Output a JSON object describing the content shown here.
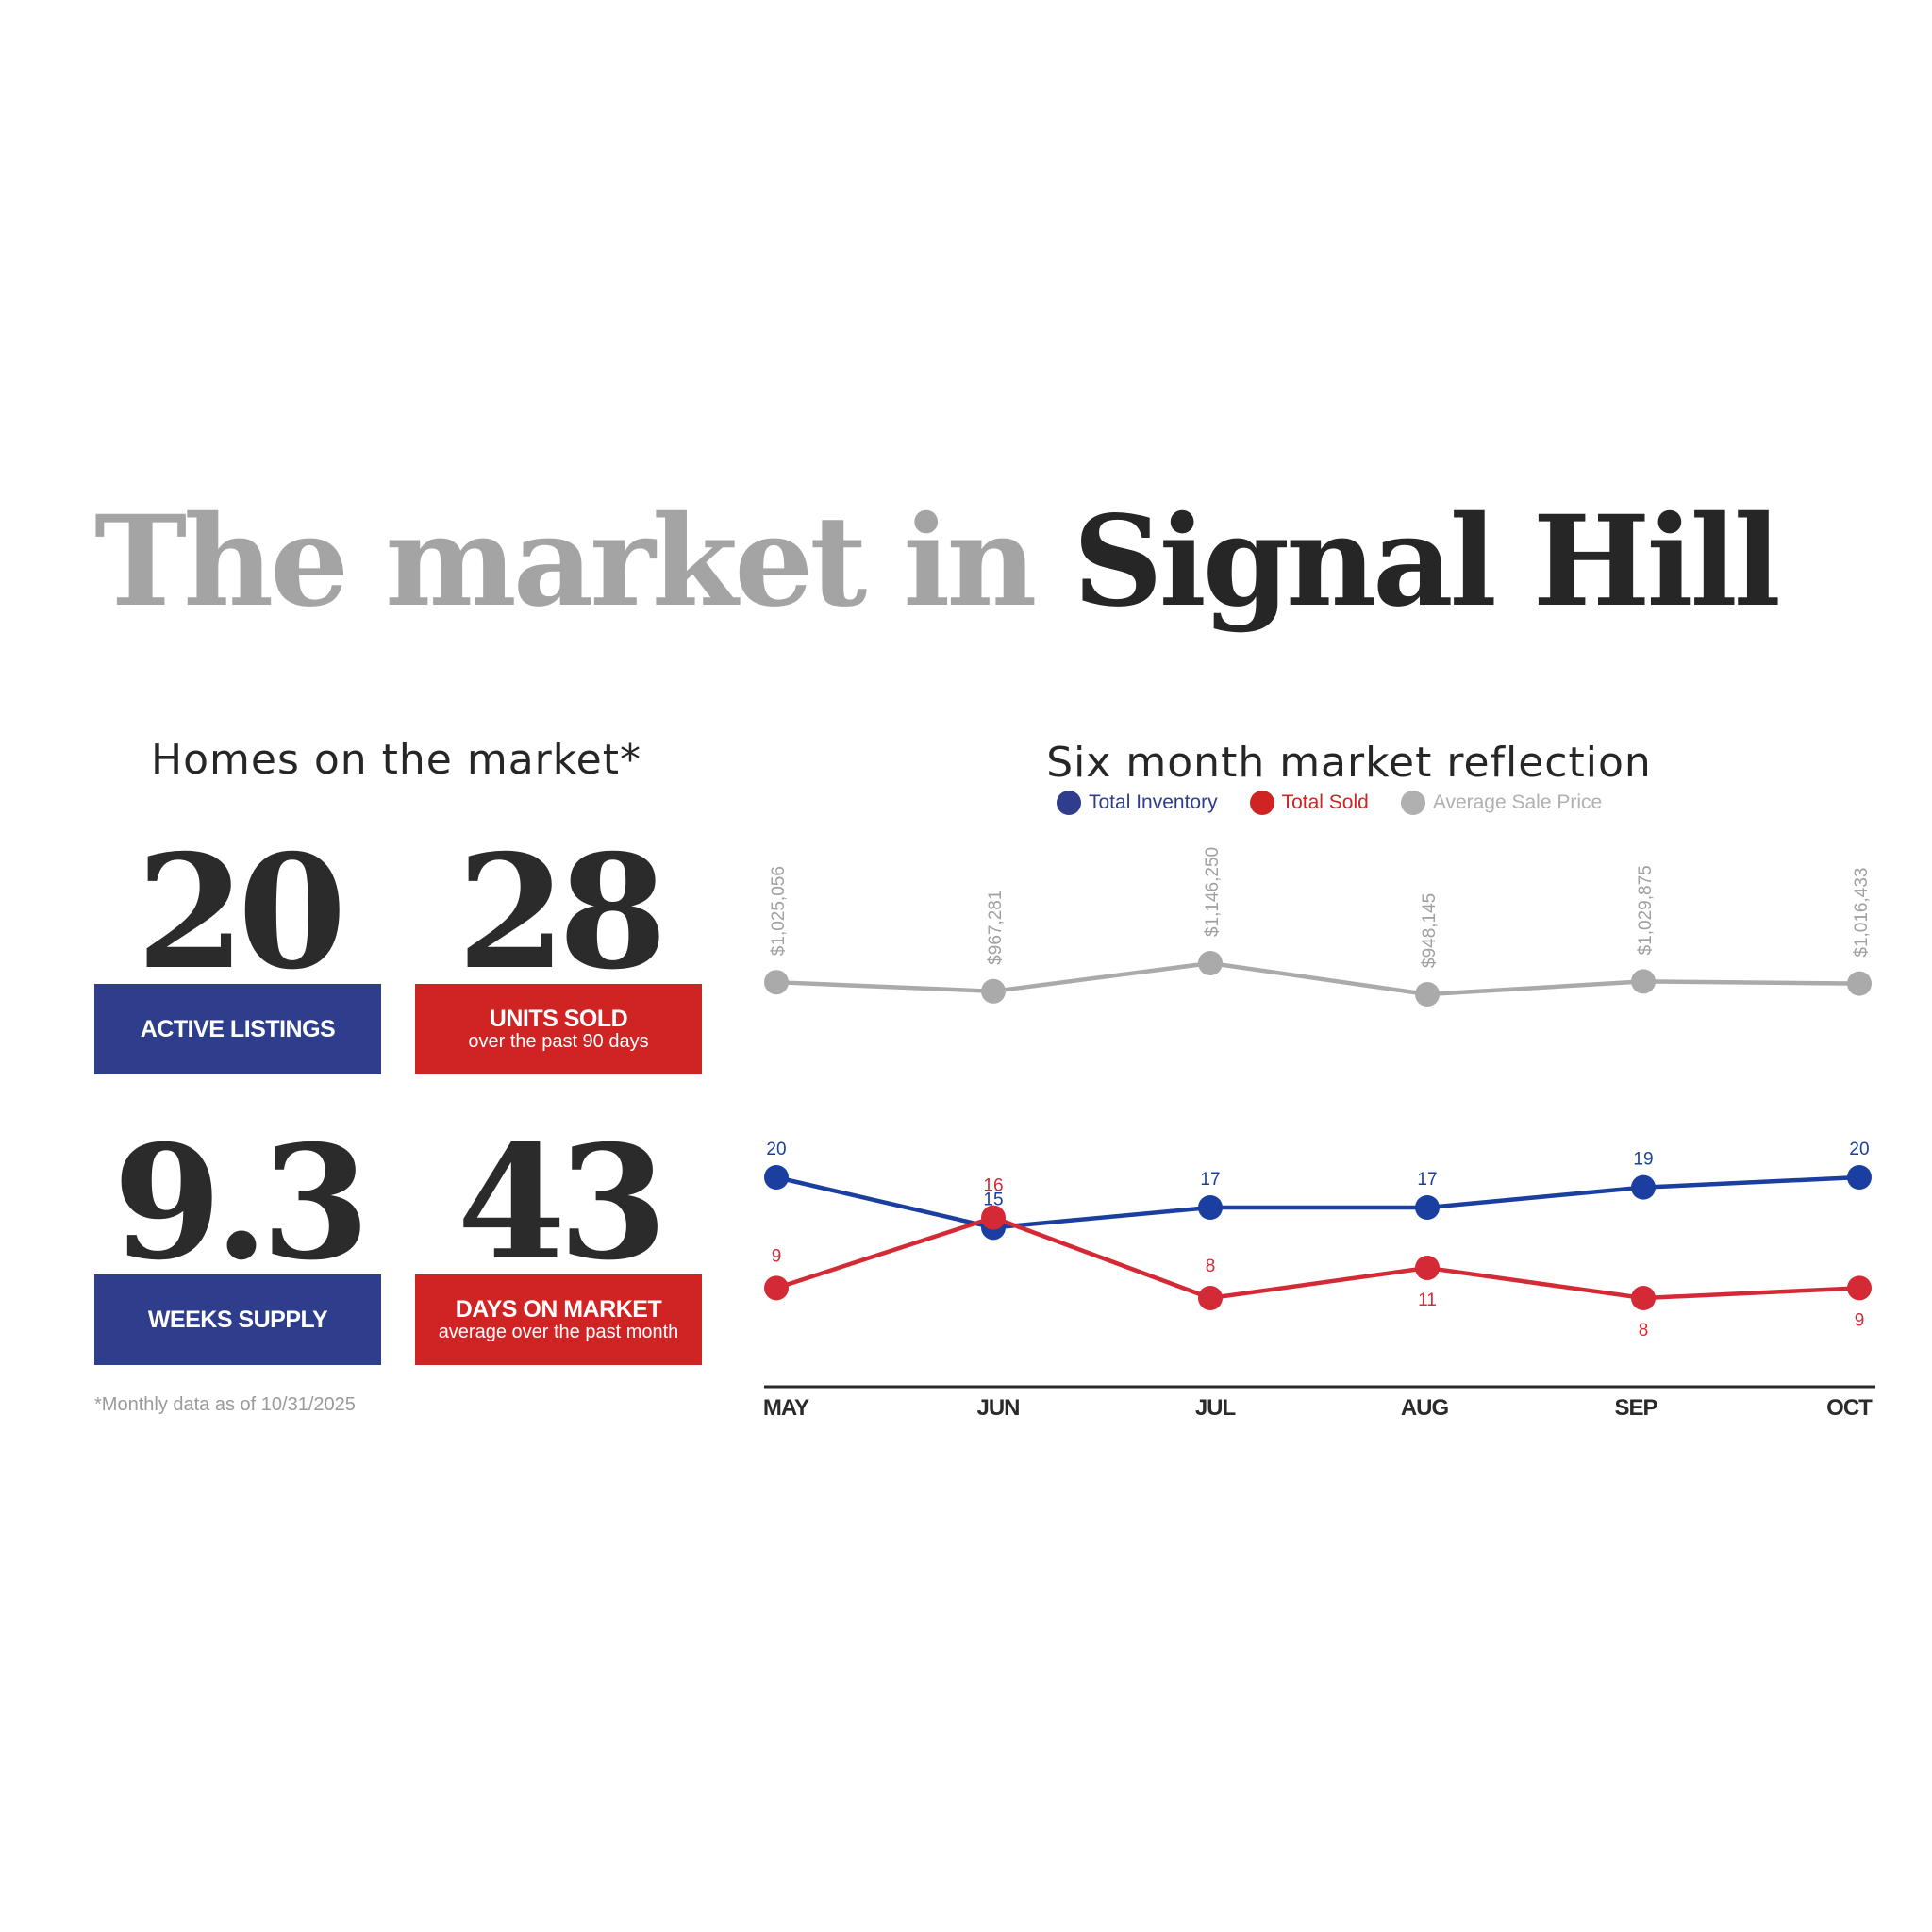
{
  "headline": {
    "prefix": "The market in",
    "place": "Signal Hill"
  },
  "homes": {
    "title": "Homes on the market*",
    "stats": [
      {
        "value": "20",
        "label": "ACTIVE LISTINGS",
        "sub": "",
        "color": "#2e3d8c"
      },
      {
        "value": "28",
        "label": "UNITS SOLD",
        "sub": "over the past 90 days",
        "color": "#d02323"
      },
      {
        "value": "9.3",
        "label": "WEEKS SUPPLY",
        "sub": "",
        "color": "#2e3d8c"
      },
      {
        "value": "43",
        "label": "DAYS ON MARKET",
        "sub": "average over the past month",
        "color": "#d02323"
      }
    ],
    "footnote": "*Monthly data as of 10/31/2025"
  },
  "chart_data": {
    "type": "line",
    "title": "Six month market reflection",
    "categories": [
      "MAY",
      "JUN",
      "JUL",
      "AUG",
      "SEP",
      "OCT"
    ],
    "series": [
      {
        "name": "Total Inventory",
        "color": "#1a3fa0",
        "legend_color": "#2e3d8c",
        "values": [
          20,
          15,
          17,
          17,
          19,
          20
        ],
        "labels": [
          "20",
          "15",
          "17",
          "17",
          "19",
          "20"
        ]
      },
      {
        "name": "Total Sold",
        "color": "#d42a36",
        "legend_color": "#d02323",
        "values": [
          9,
          16,
          8,
          11,
          8,
          9
        ],
        "labels": [
          "9",
          "16",
          "8",
          "11",
          "8",
          "9"
        ]
      },
      {
        "name": "Average Sale Price",
        "color": "#aaaaaa",
        "legend_color": "#b0b0b0",
        "values": [
          1025056,
          967281,
          1146250,
          948145,
          1029875,
          1016433
        ],
        "labels": [
          "$1,025,056",
          "$967,281",
          "$1,146,250",
          "$948,145",
          "$1,029,875",
          "$1,016,433"
        ]
      }
    ],
    "legend_placement": "top-center",
    "grid": false
  }
}
